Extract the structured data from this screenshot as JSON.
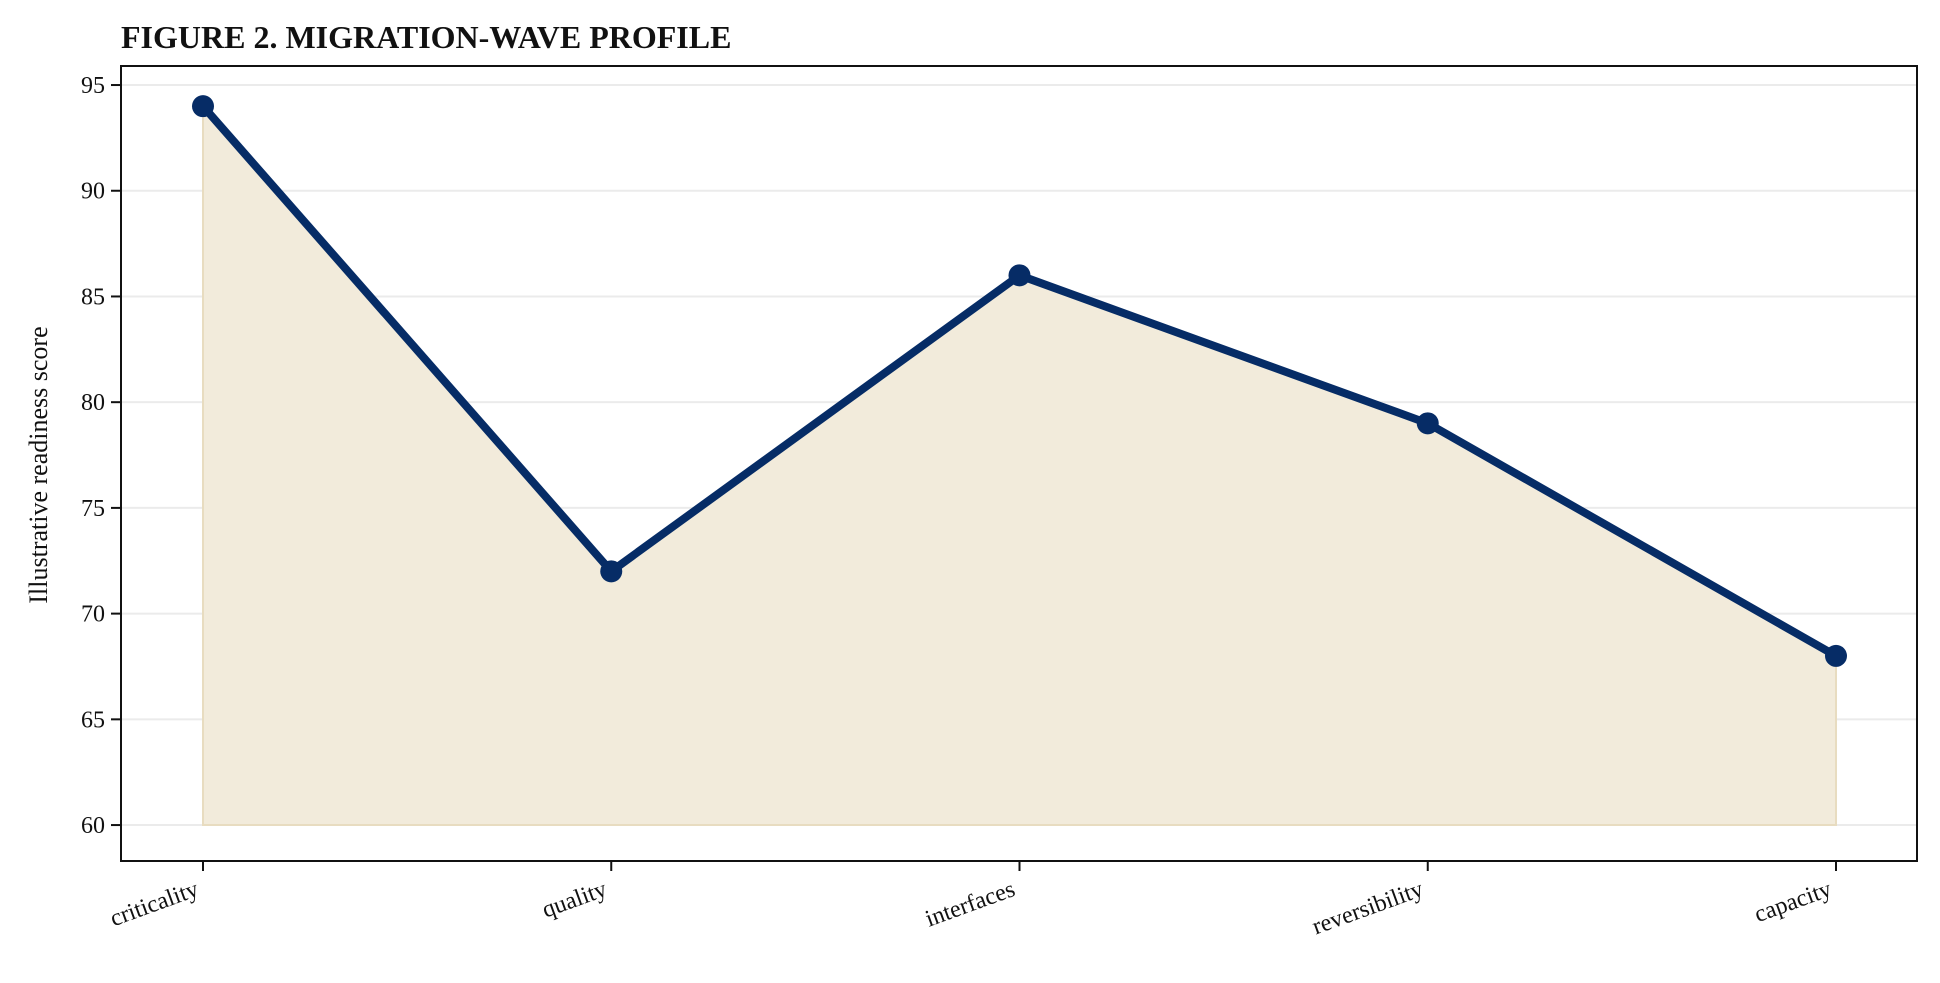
{
  "chart_data": {
    "type": "area",
    "title": "FIGURE 2. MIGRATION-WAVE PROFILE",
    "xlabel": "",
    "ylabel": "Illustrative readiness score",
    "categories": [
      "criticality",
      "quality",
      "interfaces",
      "reversibility",
      "capacity"
    ],
    "values": [
      94,
      72,
      86,
      79,
      68
    ],
    "fill_baseline": 60,
    "ylim": [
      58.3,
      95.9
    ],
    "yticks": [
      60,
      65,
      70,
      75,
      80,
      85,
      90,
      95
    ],
    "grid": "horizontal",
    "legend": "none",
    "colors": {
      "line": "#062c66",
      "fill": "#f2ebdb",
      "fill_edge": "#e8dcc0",
      "grid": "#ebebeb",
      "axis": "#111111"
    }
  }
}
